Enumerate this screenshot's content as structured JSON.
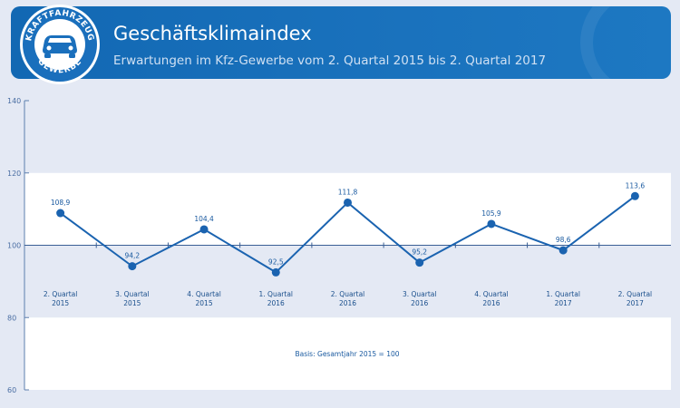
{
  "header": {
    "title": "Geschäftsklimaindex",
    "subtitle": "Erwartungen im Kfz-Gewerbe vom 2. Quartal 2015 bis 2. Quartal 2017",
    "logo_top_text": "KRAFTFAHRZEUG",
    "logo_bottom_text": "GEWERBE"
  },
  "colors": {
    "brand_blue": "#1268b3",
    "line": "#1a63b0",
    "background": "#e4e9f4",
    "band": "#ffffff"
  },
  "chart_data": {
    "type": "line",
    "title": "Geschäftsklimaindex",
    "subtitle": "Erwartungen im Kfz-Gewerbe vom 2. Quartal 2015 bis 2. Quartal 2017",
    "categories": [
      [
        "2. Quartal",
        "2015"
      ],
      [
        "3. Quartal",
        "2015"
      ],
      [
        "4. Quartal",
        "2015"
      ],
      [
        "1. Quartal",
        "2016"
      ],
      [
        "2. Quartal",
        "2016"
      ],
      [
        "3. Quartal",
        "2016"
      ],
      [
        "4. Quartal",
        "2016"
      ],
      [
        "1. Quartal",
        "2017"
      ],
      [
        "2. Quartal",
        "2017"
      ]
    ],
    "values": [
      108.9,
      94.2,
      104.4,
      92.5,
      111.8,
      95.2,
      105.9,
      98.6,
      113.6
    ],
    "value_labels": [
      "108,9",
      "94,2",
      "104,4",
      "92,5",
      "111,8",
      "95,2",
      "105,9",
      "98,6",
      "113,6"
    ],
    "ylim": [
      60,
      140
    ],
    "yticks": [
      60,
      80,
      100,
      120,
      140
    ],
    "ytick_labels": [
      "60",
      "80",
      "100",
      "120",
      "140"
    ],
    "highlight_bands": [
      [
        100,
        120
      ],
      [
        60,
        80
      ]
    ],
    "note": "Basis: Gesamtjahr 2015 = 100"
  }
}
